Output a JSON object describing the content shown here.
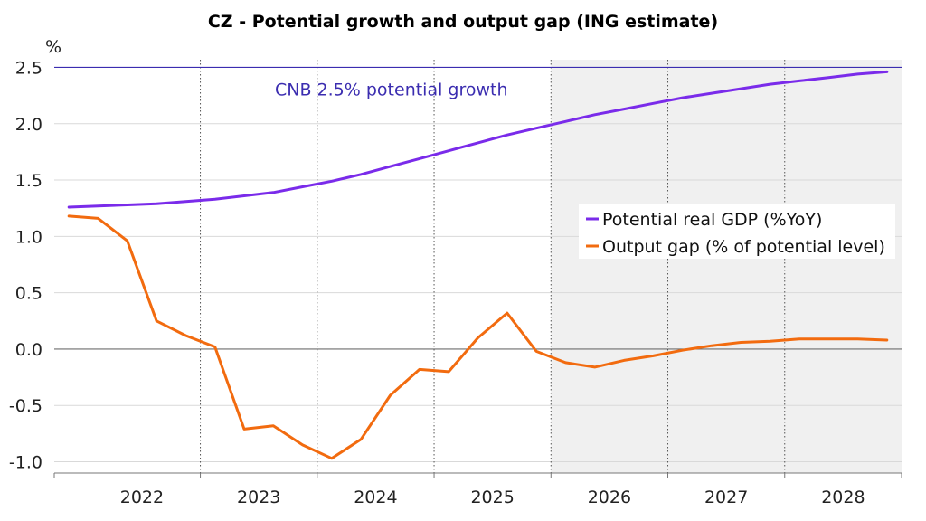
{
  "chart_data": {
    "type": "line",
    "title": "CZ - Potential growth and output gap (ING estimate)",
    "y_unit": "%",
    "xlabel": "",
    "ylabel": "",
    "ylim": [
      -1.1,
      2.6
    ],
    "yticks": [
      "2.5",
      "2.0",
      "1.5",
      "1.0",
      "0.5",
      "0.0",
      "-0.5",
      "-1.0"
    ],
    "ytick_values": [
      2.5,
      2.0,
      1.5,
      1.0,
      0.5,
      0.0,
      -0.5,
      -1.0
    ],
    "x_unit": "quarter",
    "xlim": [
      2021.75,
      2029.0
    ],
    "year_labels": [
      "2022",
      "2023",
      "2024",
      "2025",
      "2026",
      "2027",
      "2028"
    ],
    "year_dividers": [
      2023,
      2024,
      2025,
      2026,
      2027,
      2028
    ],
    "forecast_start": 2026.0,
    "grid": "horizontal",
    "legend_position": "right",
    "reference_line": {
      "y": 2.5,
      "label": "CNB 2.5% potential growth",
      "color": "#3b2db0"
    },
    "series": [
      {
        "name": "Potential real GDP (%YoY)",
        "color": "#7a2bea",
        "x": [
          2021.875,
          2022.125,
          2022.375,
          2022.625,
          2022.875,
          2023.125,
          2023.375,
          2023.625,
          2023.875,
          2024.125,
          2024.375,
          2024.625,
          2024.875,
          2025.125,
          2025.375,
          2025.625,
          2025.875,
          2026.125,
          2026.375,
          2026.625,
          2026.875,
          2027.125,
          2027.375,
          2027.625,
          2027.875,
          2028.125,
          2028.375,
          2028.625,
          2028.875
        ],
        "values": [
          1.26,
          1.27,
          1.28,
          1.29,
          1.31,
          1.33,
          1.36,
          1.39,
          1.44,
          1.49,
          1.55,
          1.62,
          1.69,
          1.76,
          1.83,
          1.9,
          1.96,
          2.02,
          2.08,
          2.13,
          2.18,
          2.23,
          2.27,
          2.31,
          2.35,
          2.38,
          2.41,
          2.44,
          2.46
        ]
      },
      {
        "name": "Output gap (% of potential level)",
        "color": "#f26b0f",
        "x": [
          2021.875,
          2022.125,
          2022.375,
          2022.625,
          2022.875,
          2023.125,
          2023.375,
          2023.625,
          2023.875,
          2024.125,
          2024.375,
          2024.625,
          2024.875,
          2025.125,
          2025.375,
          2025.625,
          2025.875,
          2026.125,
          2026.375,
          2026.625,
          2026.875,
          2027.125,
          2027.375,
          2027.625,
          2027.875,
          2028.125,
          2028.375,
          2028.625,
          2028.875
        ],
        "values": [
          1.18,
          1.16,
          0.96,
          0.25,
          0.12,
          0.02,
          -0.71,
          -0.68,
          -0.85,
          -0.97,
          -0.8,
          -0.41,
          -0.18,
          -0.2,
          0.1,
          0.32,
          -0.02,
          -0.12,
          -0.16,
          -0.1,
          -0.06,
          -0.01,
          0.03,
          0.06,
          0.07,
          0.09,
          0.09,
          0.09,
          0.08
        ]
      }
    ]
  }
}
